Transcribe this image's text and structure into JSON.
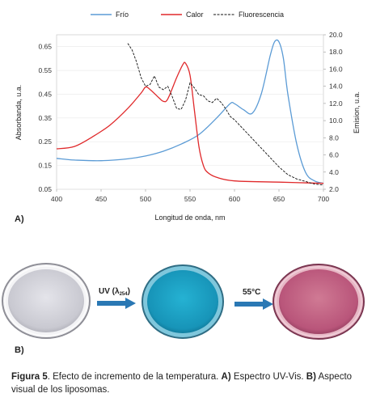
{
  "chart_data": {
    "type": "line",
    "xlabel": "Longitud de onda, nm",
    "ylabel_left": "Absorbanda, u.a.",
    "ylabel_right": "Emision, u.a.",
    "xlim": [
      400,
      700
    ],
    "ylim_left": [
      0.05,
      0.7
    ],
    "ylim_right": [
      2.0,
      20.0
    ],
    "x_ticks": [
      400,
      450,
      500,
      550,
      600,
      650,
      700
    ],
    "y_ticks_left": [
      "0.05",
      "0.15",
      "0.25",
      "0.35",
      "0.45",
      "0.55",
      "0.65"
    ],
    "y_ticks_right": [
      "2.0",
      "4.0",
      "6.0",
      "8.0",
      "10.0",
      "12.0",
      "14.0",
      "16.0",
      "18.0",
      "20.0"
    ],
    "legend_position": "top",
    "series": [
      {
        "name": "Frío",
        "axis": "left",
        "color": "#5b9bd5",
        "style": "solid",
        "x": [
          400,
          420,
          450,
          480,
          500,
          520,
          540,
          560,
          580,
          595,
          600,
          610,
          620,
          630,
          640,
          645,
          650,
          655,
          660,
          670,
          680,
          690,
          700
        ],
        "y": [
          0.18,
          0.173,
          0.17,
          0.178,
          0.19,
          0.21,
          0.24,
          0.28,
          0.35,
          0.41,
          0.41,
          0.385,
          0.37,
          0.45,
          0.61,
          0.67,
          0.67,
          0.6,
          0.45,
          0.24,
          0.12,
          0.085,
          0.075
        ]
      },
      {
        "name": "Calor",
        "axis": "left",
        "color": "#e0292b",
        "style": "solid",
        "x": [
          400,
          420,
          440,
          460,
          480,
          495,
          500,
          505,
          515,
          520,
          525,
          535,
          542,
          545,
          550,
          555,
          560,
          565,
          570,
          580,
          600,
          650,
          700
        ],
        "y": [
          0.22,
          0.23,
          0.27,
          0.32,
          0.39,
          0.455,
          0.48,
          0.47,
          0.435,
          0.42,
          0.43,
          0.52,
          0.575,
          0.58,
          0.53,
          0.38,
          0.23,
          0.15,
          0.12,
          0.1,
          0.085,
          0.08,
          0.075
        ]
      },
      {
        "name": "Fluorescencia",
        "axis": "right",
        "color": "#111111",
        "style": "dashed",
        "x": [
          480,
          485,
          490,
          495,
          500,
          505,
          510,
          515,
          520,
          525,
          530,
          535,
          540,
          545,
          550,
          555,
          560,
          565,
          570,
          575,
          580,
          585,
          590,
          595,
          600,
          610,
          620,
          630,
          640,
          650,
          660,
          670,
          680,
          690,
          700
        ],
        "y": [
          19.0,
          18.2,
          16.8,
          15.0,
          14.0,
          14.2,
          15.2,
          13.9,
          13.6,
          14.0,
          12.8,
          11.4,
          11.3,
          12.4,
          14.4,
          13.8,
          13.0,
          12.9,
          12.3,
          12.1,
          12.6,
          12.1,
          11.4,
          10.5,
          10.1,
          9.0,
          7.9,
          6.8,
          5.7,
          4.6,
          3.7,
          3.2,
          2.9,
          2.6,
          2.5
        ]
      }
    ]
  },
  "panels": {
    "a": "A)",
    "b": "B)"
  },
  "arrows": {
    "uv_prefix": "UV (λ",
    "uv_subscript": "254",
    "uv_suffix": ")",
    "heat": "55°C"
  },
  "caption": {
    "figure_label": "Figura 5",
    "text_1": ". Efecto de incremento de la temperatura. ",
    "part_a": "A)",
    "text_2": " Espectro UV-Vis. ",
    "part_b": "B)",
    "text_3": " Aspecto visual de los liposomas."
  },
  "colors": {
    "dish_1": "#d6d6dc",
    "dish_2": "#1fa3c4",
    "dish_3": "#c66a86",
    "arrow": "#2a78b4"
  }
}
